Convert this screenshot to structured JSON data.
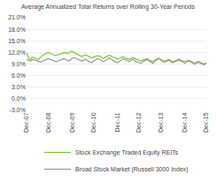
{
  "chart_data": {
    "type": "line",
    "title": "Average Annualized Total Returns over Rolling 30-Year Periods",
    "categories": [
      "Dec-07",
      null,
      null,
      null,
      null,
      null,
      null,
      null,
      null,
      null,
      null,
      "Dec-08",
      null,
      null,
      null,
      null,
      null,
      null,
      null,
      null,
      null,
      null,
      null,
      "Dec-09",
      null,
      null,
      null,
      null,
      null,
      null,
      null,
      null,
      null,
      null,
      "Dec-10",
      null,
      null,
      null,
      null,
      null,
      null,
      null,
      null,
      null,
      null,
      null,
      "Dec-11",
      null,
      null,
      null,
      null,
      null,
      null,
      null,
      null,
      null,
      null,
      "Dec-12",
      null,
      null,
      null,
      null,
      null,
      null,
      null,
      null,
      null,
      null,
      "Dec-13",
      null,
      null,
      null,
      null,
      null,
      null,
      null,
      null,
      null,
      null,
      null,
      "Dec-14",
      null,
      null,
      null,
      null,
      null,
      null,
      null,
      null,
      null,
      null,
      "Dec-15"
    ],
    "series": [
      {
        "name": "Stock Exchange Traded Equity REITs",
        "color": "#7dc832",
        "values": [
          12.0,
          10.5,
          10.2,
          10.8,
          10.6,
          10.3,
          10.2,
          10.8,
          11.2,
          11.5,
          11.8,
          12.0,
          11.8,
          11.5,
          11.3,
          11.2,
          11.4,
          11.6,
          11.8,
          12.0,
          11.9,
          11.7,
          12.2,
          12.3,
          12.0,
          11.7,
          11.4,
          11.2,
          11.0,
          11.2,
          11.4,
          11.1,
          10.8,
          10.6,
          10.8,
          11.0,
          11.2,
          11.0,
          10.7,
          10.5,
          10.8,
          11.1,
          11.3,
          11.0,
          10.8,
          10.5,
          10.3,
          10.5,
          10.7,
          10.9,
          10.6,
          10.4,
          10.2,
          10.5,
          10.7,
          10.4,
          10.2,
          10.0,
          9.8,
          10.0,
          10.2,
          10.4,
          10.1,
          9.9,
          9.7,
          10.0,
          10.3,
          10.5,
          10.2,
          9.9,
          9.8,
          10.0,
          10.2,
          9.9,
          9.7,
          9.8,
          10.0,
          10.2,
          10.0,
          9.8,
          9.6,
          9.8,
          10.0,
          9.8,
          9.5,
          9.3,
          9.5,
          9.7,
          9.4,
          9.2,
          9.0,
          9.3
        ]
      },
      {
        "name": "Broad Stock Market (Russell 3000 Index)",
        "color": "#999999",
        "values": [
          10.2,
          10.0,
          9.8,
          10.2,
          10.0,
          9.8,
          9.6,
          9.5,
          9.8,
          10.0,
          10.2,
          10.4,
          10.2,
          10.0,
          9.8,
          9.6,
          9.8,
          10.0,
          10.2,
          10.4,
          10.2,
          9.8,
          10.0,
          10.5,
          10.7,
          10.4,
          10.2,
          10.0,
          9.8,
          10.0,
          10.2,
          9.8,
          9.6,
          9.4,
          9.8,
          10.2,
          10.4,
          10.2,
          9.8,
          9.6,
          10.0,
          10.4,
          10.6,
          10.2,
          9.8,
          9.5,
          9.4,
          9.8,
          10.2,
          10.4,
          10.2,
          9.8,
          9.6,
          10.0,
          10.2,
          9.8,
          9.5,
          9.4,
          9.2,
          9.6,
          10.0,
          10.2,
          9.8,
          9.4,
          9.2,
          9.8,
          10.2,
          10.4,
          10.0,
          9.6,
          9.5,
          9.8,
          10.0,
          9.6,
          9.4,
          9.6,
          9.8,
          10.0,
          9.8,
          9.6,
          9.2,
          9.5,
          9.8,
          9.6,
          9.3,
          9.0,
          9.2,
          9.5,
          9.2,
          9.0,
          8.8,
          9.2
        ]
      }
    ],
    "ylim": [
      -3.0,
      21.0
    ],
    "yticks": [
      {
        "value": -3.0,
        "label": "-3.0%"
      },
      {
        "value": 0.0,
        "label": "0.0%"
      },
      {
        "value": 3.0,
        "label": "3.0%"
      },
      {
        "value": 6.0,
        "label": "6.0%"
      },
      {
        "value": 9.0,
        "label": "9.0%"
      },
      {
        "value": 12.0,
        "label": "12.0%"
      },
      {
        "value": 15.0,
        "label": "15.0%"
      },
      {
        "value": 18.0,
        "label": "18.0%"
      },
      {
        "value": 21.0,
        "label": "21.0%"
      }
    ],
    "grid": true,
    "legend": "bottom"
  }
}
